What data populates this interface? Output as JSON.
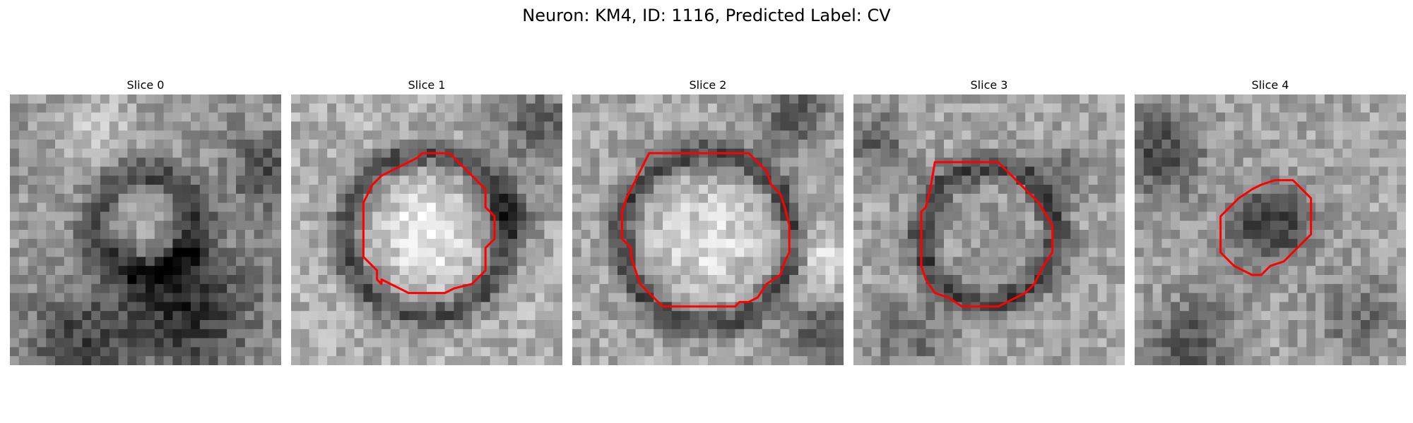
{
  "figure": {
    "title": "Neuron: KM4, ID: 1116, Predicted Label: CV"
  },
  "colors": {
    "contour": "#ff0000",
    "background": "#ffffff"
  },
  "panels": [
    {
      "title": "Slice 0",
      "has_contour": false,
      "tone": "dark ring with darker lower region"
    },
    {
      "title": "Slice 1",
      "has_contour": true,
      "tone": "bright round body"
    },
    {
      "title": "Slice 2",
      "has_contour": true,
      "tone": "bright round body"
    },
    {
      "title": "Slice 3",
      "has_contour": true,
      "tone": "mid-gray round body"
    },
    {
      "title": "Slice 4",
      "has_contour": true,
      "tone": "small dark body"
    }
  ]
}
